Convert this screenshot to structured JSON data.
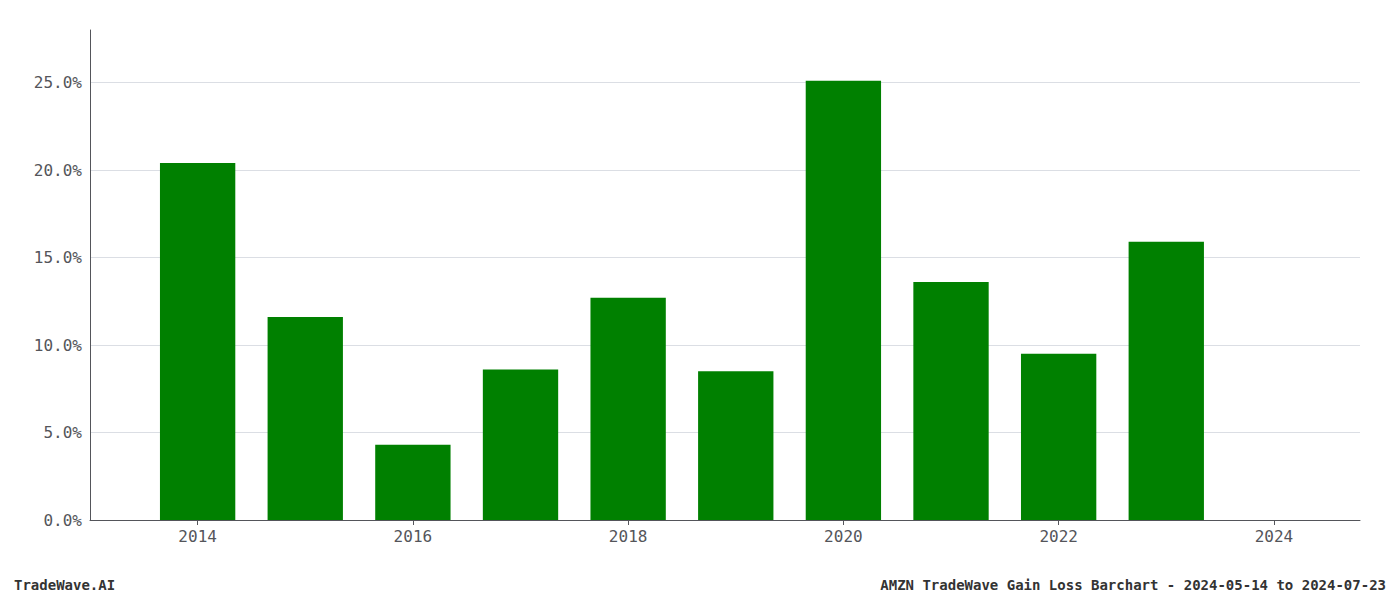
{
  "chart_data": {
    "type": "bar",
    "x": [
      2014,
      2015,
      2016,
      2017,
      2018,
      2019,
      2020,
      2021,
      2022,
      2023,
      2024
    ],
    "values": [
      0.204,
      0.116,
      0.043,
      0.086,
      0.127,
      0.085,
      0.251,
      0.136,
      0.095,
      0.159,
      null
    ],
    "color": "#008000",
    "xlim": [
      2013.0,
      2024.8
    ],
    "xticks": [
      2014,
      2016,
      2018,
      2020,
      2022,
      2024
    ],
    "ylim": [
      0,
      0.28
    ],
    "yticks": [
      {
        "value": 0.0,
        "label": "0.0%"
      },
      {
        "value": 0.05,
        "label": "5.0%"
      },
      {
        "value": 0.1,
        "label": "10.0%"
      },
      {
        "value": 0.15,
        "label": "15.0%"
      },
      {
        "value": 0.2,
        "label": "20.0%"
      },
      {
        "value": 0.25,
        "label": "25.0%"
      }
    ],
    "grid": true,
    "annotations": [
      "TradeWave.AI",
      "AMZN TradeWave Gain Loss Barchart - 2024-05-14 to 2024-07-23"
    ]
  }
}
